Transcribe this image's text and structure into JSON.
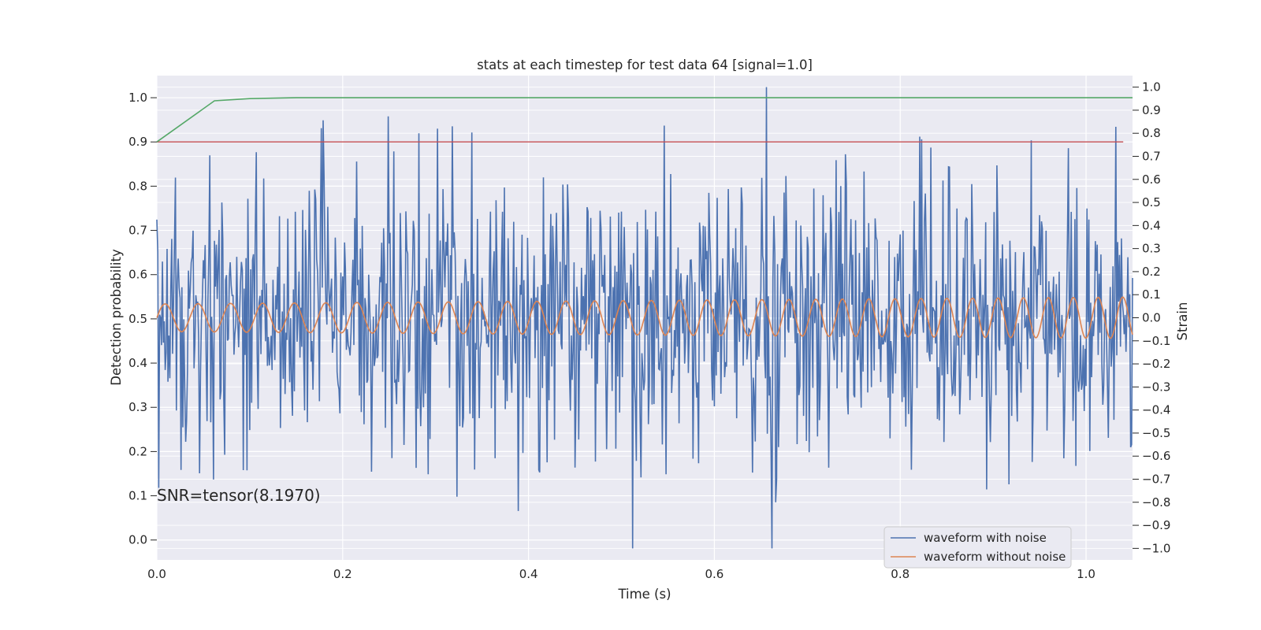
{
  "chart_data": {
    "type": "line",
    "title": "stats at each timestep for test data 64 [signal=1.0]",
    "xlabel": "Time (s)",
    "ylabel": "Detection probability",
    "y2label": "Strain",
    "xlim": [
      0.0,
      1.05
    ],
    "ylim": [
      -0.045,
      1.05
    ],
    "y2lim": [
      -1.05,
      1.05
    ],
    "grid": true,
    "legend_position": "lower-right",
    "x_ticks": [
      "0.0",
      "0.2",
      "0.4",
      "0.6",
      "0.8",
      "1.0"
    ],
    "y_ticks": [
      "0.0",
      "0.1",
      "0.2",
      "0.3",
      "0.4",
      "0.5",
      "0.6",
      "0.7",
      "0.8",
      "0.9",
      "1.0"
    ],
    "y2_ticks": [
      "−1.0",
      "−0.9",
      "−0.8",
      "−0.7",
      "−0.6",
      "−0.5",
      "−0.4",
      "−0.3",
      "−0.2",
      "−0.1",
      "0.0",
      "0.1",
      "0.2",
      "0.3",
      "0.4",
      "0.5",
      "0.6",
      "0.7",
      "0.8",
      "0.9",
      "1.0"
    ],
    "annotation": "SNR=tensor(8.1970)",
    "series": [
      {
        "name": "waveform with noise",
        "axis": "right",
        "color": "#4c72b0",
        "x_start": 0.0,
        "x_step": 0.001,
        "approx_range": [
          -1.0,
          1.0
        ]
      },
      {
        "name": "waveform without noise",
        "axis": "right",
        "color": "#dd8452",
        "x_start": 0.0,
        "x_step": 0.001,
        "amplitude_start": 0.06,
        "amplitude_end": 0.09,
        "frequency_start_hz": 28,
        "frequency_end_hz": 38
      },
      {
        "axis": "left",
        "color": "#55a868",
        "x": [
          0.0,
          0.062,
          0.1,
          0.15,
          1.05
        ],
        "y": [
          0.9,
          0.993,
          0.998,
          1.0,
          1.0
        ]
      },
      {
        "axis": "left",
        "color": "#c44e52",
        "x": [
          0.0,
          1.04
        ],
        "y": [
          0.9,
          0.9
        ]
      }
    ]
  }
}
